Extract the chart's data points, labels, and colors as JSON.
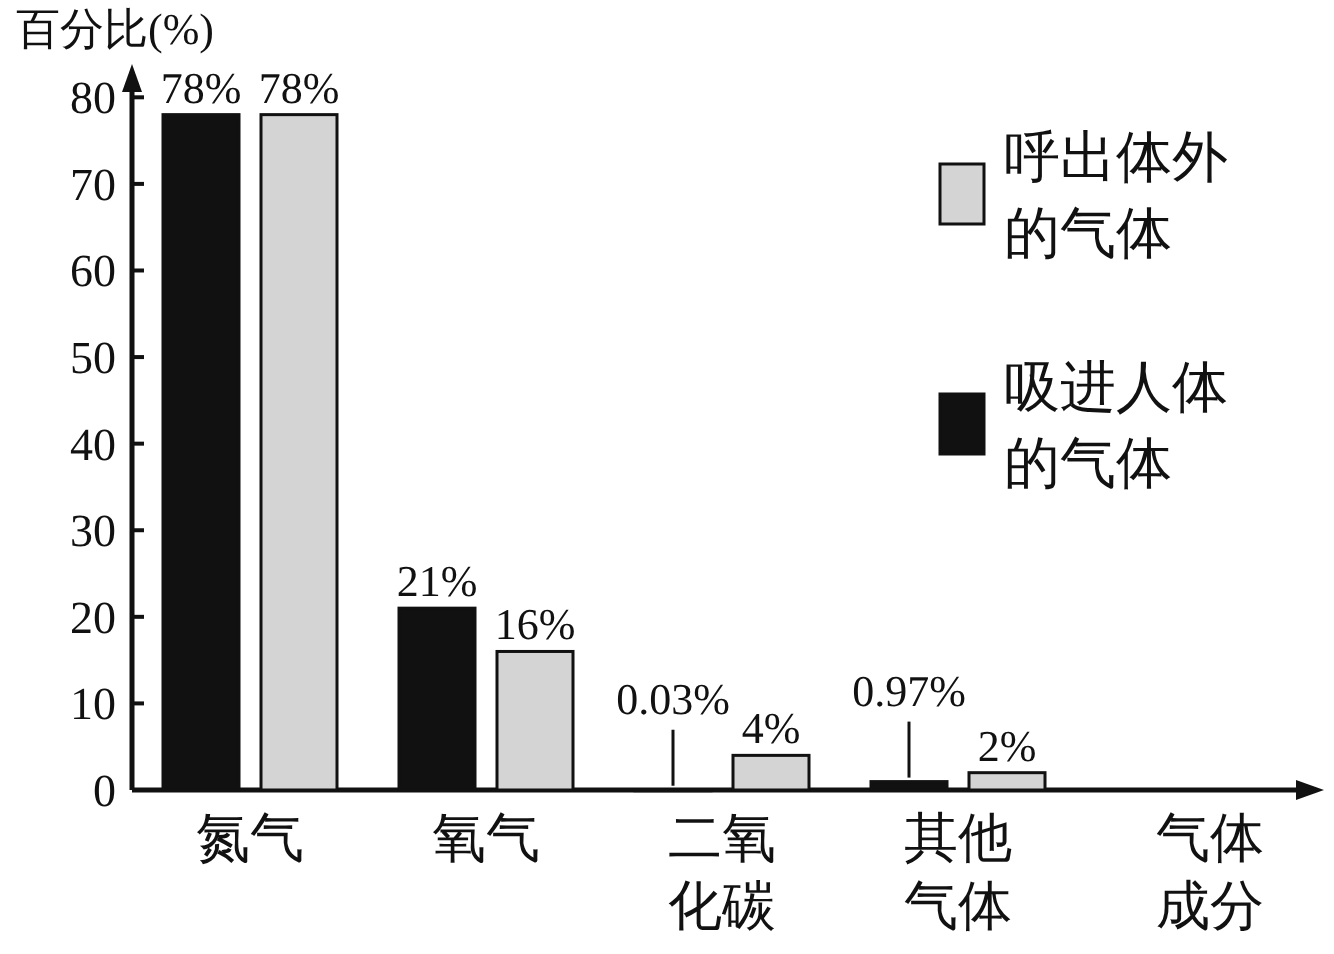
{
  "chart_data": {
    "type": "bar",
    "ylabel": "百分比(%)",
    "xlabel": "气体成分",
    "categories": [
      "氮气",
      "氧气",
      "二氧化碳",
      "其他气体"
    ],
    "series": [
      {
        "name": "吸进人体的气体",
        "color": "#111111",
        "values": [
          78,
          21,
          0.03,
          0.97
        ],
        "value_labels": [
          "78%",
          "21%",
          "0.03%",
          "0.97%"
        ]
      },
      {
        "name": "呼出体外的气体",
        "color": "#d4d4d4",
        "values": [
          78,
          16,
          4,
          2
        ],
        "value_labels": [
          "78%",
          "16%",
          "4%",
          "2%"
        ]
      }
    ],
    "ylim": [
      0,
      82
    ],
    "yticks": [
      0,
      10,
      20,
      30,
      40,
      50,
      60,
      70,
      80
    ],
    "legend": "top right",
    "grid": false
  }
}
